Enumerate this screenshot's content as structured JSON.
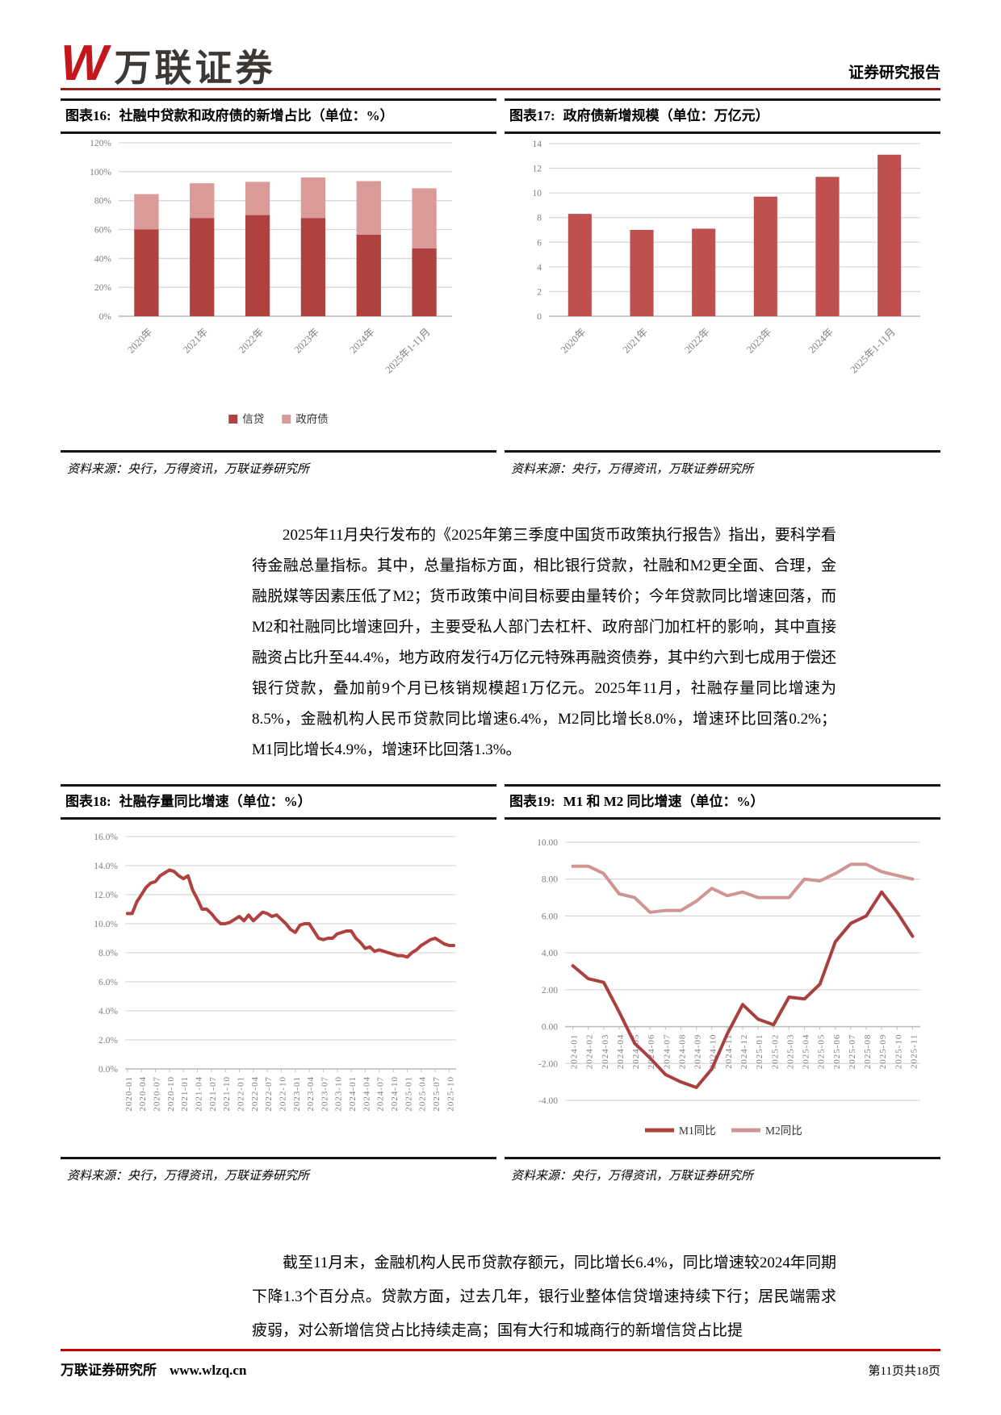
{
  "header": {
    "logo_mark": "W",
    "logo_text": "万联证券",
    "report_type": "证券研究报告"
  },
  "theme": {
    "logo_red": "#c4171c",
    "logo_text_color": "#3c3836",
    "header_rule": "#96201e",
    "footer_rule": "#cc0000",
    "chart_dark_red": "#b0413e",
    "chart_pink": "#d99a98",
    "chart_bar_red": "#c0504d",
    "grid_gray": "#d8d8d8",
    "tick_gray": "#7f7f7f"
  },
  "panels": [
    {
      "heading_label": "图表16:",
      "heading": "社融中贷款和政府债的新增占比（单位：%）",
      "source": "资料来源：央行，万得资讯，万联证券研究所"
    },
    {
      "heading_label": "图表17:",
      "heading": "政府债新增规模（单位：万亿元）",
      "source": "资料来源：央行，万得资讯，万联证券研究所"
    },
    {
      "heading_label": "图表18:",
      "heading": "社融存量同比增速（单位：%）",
      "source": "资料来源：央行，万得资讯，万联证券研究所"
    },
    {
      "heading_label": "图表19:",
      "heading": "M1 和 M2 同比增速（单位：%）",
      "source": "资料来源：央行，万得资讯，万联证券研究所"
    }
  ],
  "paragraphs": {
    "p1": "2025年11月央行发布的《2025年第三季度中国货币政策执行报告》指出，要科学看待金融总量指标。其中，总量指标方面，相比银行贷款，社融和M2更全面、合理，金融脱媒等因素压低了M2；货币政策中间目标要由量转价；今年贷款同比增速回落，而M2和社融同比增速回升，主要受私人部门去杠杆、政府部门加杠杆的影响，其中直接融资占比升至44.4%，地方政府发行4万亿元特殊再融资债券，其中约六到七成用于偿还银行贷款，叠加前9个月已核销规模超1万亿元。2025年11月，社融存量同比增速为8.5%，金融机构人民币贷款同比增速6.4%，M2同比增长8.0%，增速环比回落0.2%；M1同比增长4.9%，增速环比回落1.3%。",
    "p2": "截至11月末，金融机构人民币贷款存额元，同比增长6.4%，同比增速较2024年同期下降1.3个百分点。贷款方面，过去几年，银行业整体信贷增速持续下行；居民端需求疲弱，对公新增信贷占比持续走高；国有大行和城商行的新增信贷占比提"
  },
  "footer": {
    "left_institute": "万联证券研究所",
    "left_url": "www.wlzq.cn",
    "page_info": "第11页共18页"
  },
  "chart_data": [
    {
      "type": "bar",
      "stacked": true,
      "title": "社融中贷款和政府债的新增占比（单位：%）",
      "categories": [
        "2020年",
        "2021年",
        "2022年",
        "2023年",
        "2024年",
        "2025年1-11月"
      ],
      "series": [
        {
          "name": "信贷",
          "color": "#b0413e",
          "values": [
            60,
            68,
            70,
            68,
            56.5,
            47
          ]
        },
        {
          "name": "政府债",
          "color": "#d99a98",
          "values": [
            24.5,
            24,
            23,
            28,
            37,
            41.5
          ]
        }
      ],
      "ylim": [
        0,
        120
      ],
      "y_step": 20,
      "y_format": "percent0",
      "grid": true,
      "legend_position": "bottom"
    },
    {
      "type": "bar",
      "stacked": false,
      "title": "政府债新增规模（单位：万亿元）",
      "categories": [
        "2020年",
        "2021年",
        "2022年",
        "2023年",
        "2024年",
        "2025年1-11月"
      ],
      "series": [
        {
          "name": "政府债新增规模",
          "color": "#c0504d",
          "values": [
            8.3,
            7.0,
            7.1,
            9.7,
            11.3,
            13.1
          ]
        }
      ],
      "ylim": [
        0,
        14
      ],
      "y_step": 2,
      "y_format": "int",
      "grid": true,
      "legend_position": "none"
    },
    {
      "type": "line",
      "title": "社融存量同比增速（单位：%）",
      "x": [
        "2020-01",
        "2020-02",
        "2020-03",
        "2020-04",
        "2020-05",
        "2020-06",
        "2020-07",
        "2020-08",
        "2020-09",
        "2020-10",
        "2020-11",
        "2020-12",
        "2021-01",
        "2021-02",
        "2021-03",
        "2021-04",
        "2021-05",
        "2021-06",
        "2021-07",
        "2021-08",
        "2021-09",
        "2021-10",
        "2021-11",
        "2021-12",
        "2022-01",
        "2022-02",
        "2022-03",
        "2022-04",
        "2022-05",
        "2022-06",
        "2022-07",
        "2022-08",
        "2022-09",
        "2022-10",
        "2022-11",
        "2022-12",
        "2023-01",
        "2023-02",
        "2023-03",
        "2023-04",
        "2023-05",
        "2023-06",
        "2023-07",
        "2023-08",
        "2023-09",
        "2023-10",
        "2023-11",
        "2023-12",
        "2024-01",
        "2024-02",
        "2024-03",
        "2024-04",
        "2024-05",
        "2024-06",
        "2024-07",
        "2024-08",
        "2024-09",
        "2024-10",
        "2024-11",
        "2024-12",
        "2025-01",
        "2025-02",
        "2025-03",
        "2025-04",
        "2025-05",
        "2025-06",
        "2025-07",
        "2025-08",
        "2025-09",
        "2025-10",
        "2025-11"
      ],
      "x_tick_every": 3,
      "series": [
        {
          "name": "社融存量同比增速",
          "color": "#b0413e",
          "values": [
            10.7,
            10.7,
            11.5,
            12.0,
            12.5,
            12.8,
            12.9,
            13.3,
            13.5,
            13.7,
            13.6,
            13.3,
            13.1,
            13.3,
            12.3,
            11.7,
            11.0,
            11.0,
            10.7,
            10.3,
            10.0,
            10.0,
            10.1,
            10.3,
            10.5,
            10.2,
            10.6,
            10.2,
            10.5,
            10.8,
            10.7,
            10.5,
            10.6,
            10.3,
            10.0,
            9.6,
            9.4,
            9.9,
            10.0,
            10.0,
            9.5,
            9.0,
            8.9,
            9.0,
            9.0,
            9.3,
            9.4,
            9.5,
            9.5,
            9.0,
            8.7,
            8.3,
            8.4,
            8.1,
            8.2,
            8.1,
            8.0,
            7.9,
            7.8,
            7.8,
            7.7,
            8.0,
            8.2,
            8.5,
            8.7,
            8.9,
            9.0,
            8.8,
            8.6,
            8.5,
            8.5
          ]
        }
      ],
      "ylim": [
        0,
        16
      ],
      "y_step": 2,
      "y_format": "percent1",
      "grid": true,
      "legend_position": "none"
    },
    {
      "type": "line",
      "title": "M1 和 M2 同比增速（单位：%）",
      "x": [
        "2024-01",
        "2024-02",
        "2024-03",
        "2024-04",
        "2024-05",
        "2024-06",
        "2024-07",
        "2024-08",
        "2024-09",
        "2024-10",
        "2024-11",
        "2024-12",
        "2025-01",
        "2025-02",
        "2025-03",
        "2025-04",
        "2025-05",
        "2025-06",
        "2025-07",
        "2025-08",
        "2025-09",
        "2025-10",
        "2025-11"
      ],
      "x_tick_every": 1,
      "series": [
        {
          "name": "M1同比",
          "color": "#a8403d",
          "values": [
            3.3,
            2.6,
            2.4,
            0.8,
            -0.9,
            -1.7,
            -2.6,
            -3.0,
            -3.3,
            -2.3,
            -0.4,
            1.2,
            0.4,
            0.1,
            1.6,
            1.5,
            2.3,
            4.6,
            5.6,
            6.0,
            7.3,
            6.2,
            4.9
          ]
        },
        {
          "name": "M2同比",
          "color": "#d09593",
          "values": [
            8.7,
            8.7,
            8.3,
            7.2,
            7.0,
            6.2,
            6.3,
            6.3,
            6.8,
            7.5,
            7.1,
            7.3,
            7.0,
            7.0,
            7.0,
            8.0,
            7.9,
            8.3,
            8.8,
            8.8,
            8.4,
            8.2,
            8.0
          ]
        }
      ],
      "ylim": [
        -4,
        10
      ],
      "y_step": 2,
      "y_format": "dec2",
      "grid": true,
      "legend_position": "bottom"
    }
  ]
}
